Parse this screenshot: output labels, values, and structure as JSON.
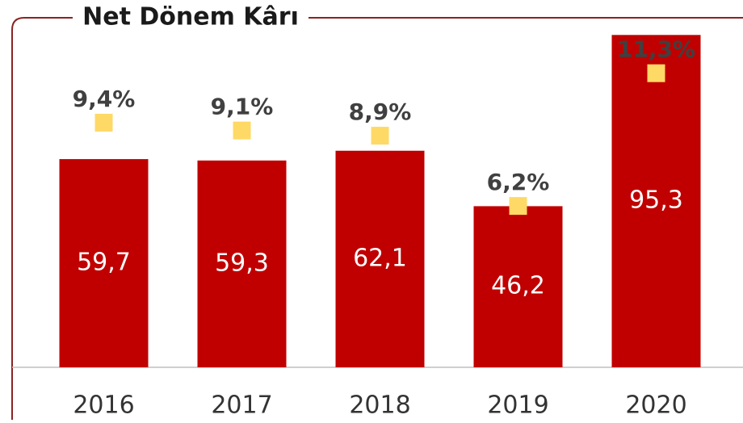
{
  "chart_data": {
    "type": "bar",
    "title": "Net Dönem Kârı",
    "categories": [
      "2016",
      "2017",
      "2018",
      "2019",
      "2020"
    ],
    "ylim": [
      0,
      100
    ],
    "y2lim": [
      0,
      13.4
    ],
    "series": [
      {
        "type": "bar",
        "color": "#c00000",
        "values": [
          59.7,
          59.3,
          62.1,
          46.2,
          95.3
        ],
        "value_labels": [
          "59,7",
          "59,3",
          "62,1",
          "46,2",
          "95,3"
        ]
      },
      {
        "type": "scatter",
        "axis": "y2",
        "color": "#ffd966",
        "values": [
          9.4,
          9.1,
          8.9,
          6.2,
          11.3
        ],
        "value_labels": [
          "9,4%",
          "9,1%",
          "8,9%",
          "6,2%",
          "11,3%"
        ]
      }
    ]
  }
}
